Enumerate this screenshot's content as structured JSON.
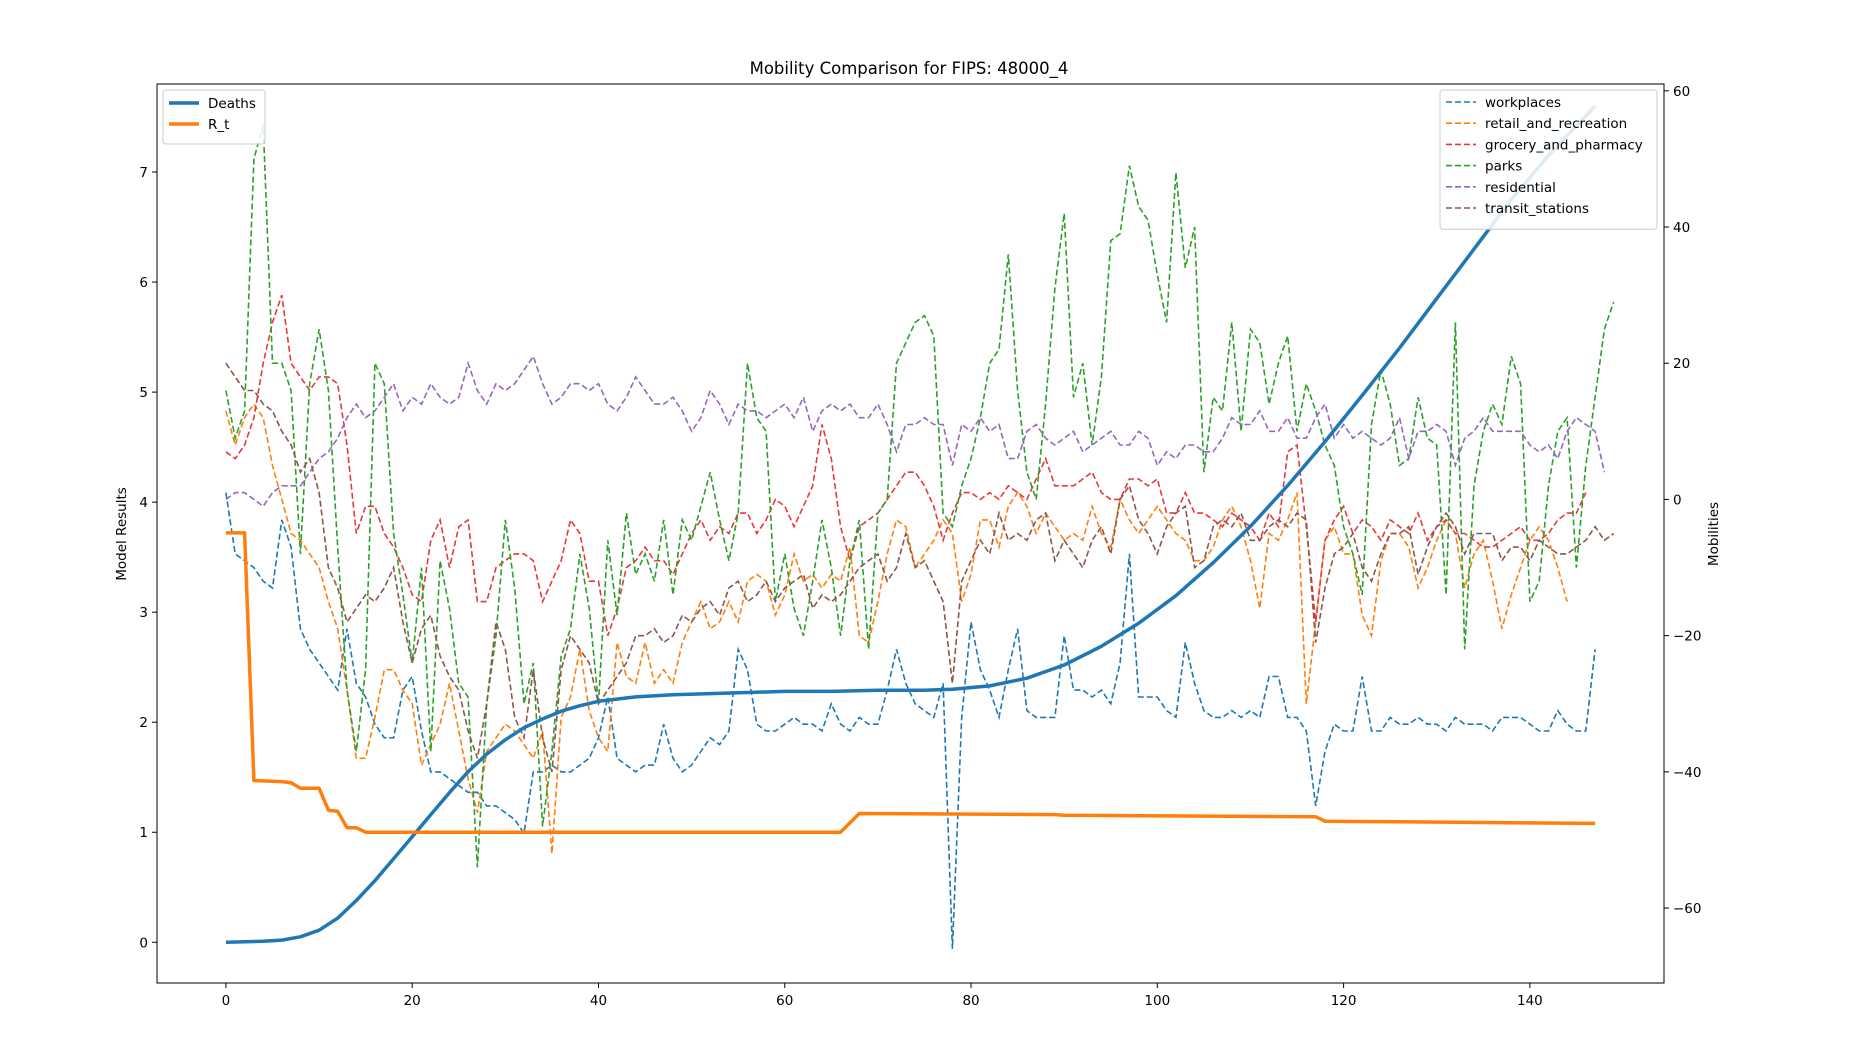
{
  "chart_data": {
    "type": "line",
    "title": "Mobility Comparison for FIPS: 48000_4",
    "xlabel": "",
    "ylabel": "Model Results",
    "y2label": "Mobilities",
    "xlim": [
      -7.4,
      154.4
    ],
    "ylim": [
      -0.37,
      7.8
    ],
    "y2lim": [
      -71,
      61
    ],
    "xticks": [
      0,
      20,
      40,
      60,
      80,
      100,
      120,
      140
    ],
    "yticks": [
      0,
      1,
      2,
      3,
      4,
      5,
      6,
      7
    ],
    "y2ticks": [
      -60,
      -40,
      -20,
      0,
      20,
      40,
      60
    ],
    "legend_left_position": "upper left",
    "legend_right_position": "upper right",
    "model_series": [
      {
        "name": "Deaths",
        "color": "#1f77b4",
        "style": "solid",
        "points": [
          [
            0,
            0
          ],
          [
            4,
            0.01
          ],
          [
            6,
            0.02
          ],
          [
            8,
            0.05
          ],
          [
            10,
            0.11
          ],
          [
            12,
            0.22
          ],
          [
            14,
            0.38
          ],
          [
            16,
            0.56
          ],
          [
            18,
            0.76
          ],
          [
            20,
            0.96
          ],
          [
            22,
            1.16
          ],
          [
            24,
            1.36
          ],
          [
            26,
            1.55
          ],
          [
            28,
            1.71
          ],
          [
            30,
            1.84
          ],
          [
            32,
            1.95
          ],
          [
            34,
            2.03
          ],
          [
            36,
            2.1
          ],
          [
            38,
            2.15
          ],
          [
            40,
            2.19
          ],
          [
            44,
            2.23
          ],
          [
            48,
            2.25
          ],
          [
            52,
            2.26
          ],
          [
            56,
            2.27
          ],
          [
            60,
            2.28
          ],
          [
            65,
            2.28
          ],
          [
            70,
            2.29
          ],
          [
            75,
            2.29
          ],
          [
            78,
            2.3
          ],
          [
            82,
            2.33
          ],
          [
            86,
            2.4
          ],
          [
            90,
            2.52
          ],
          [
            94,
            2.69
          ],
          [
            98,
            2.9
          ],
          [
            102,
            3.15
          ],
          [
            106,
            3.45
          ],
          [
            110,
            3.78
          ],
          [
            114,
            4.15
          ],
          [
            118,
            4.55
          ],
          [
            122,
            4.97
          ],
          [
            126,
            5.4
          ],
          [
            130,
            5.85
          ],
          [
            134,
            6.3
          ],
          [
            138,
            6.75
          ],
          [
            142,
            7.15
          ],
          [
            147,
            7.6
          ]
        ]
      },
      {
        "name": "R_t",
        "color": "#ff7f0e",
        "style": "solid",
        "points": [
          [
            0,
            3.72
          ],
          [
            2,
            3.72
          ],
          [
            3,
            1.47
          ],
          [
            6,
            1.46
          ],
          [
            7,
            1.45
          ],
          [
            8,
            1.4
          ],
          [
            10,
            1.4
          ],
          [
            11,
            1.2
          ],
          [
            12,
            1.19
          ],
          [
            13,
            1.04
          ],
          [
            14,
            1.04
          ],
          [
            15,
            1.0
          ],
          [
            66,
            1.0
          ],
          [
            68,
            1.17
          ],
          [
            89,
            1.16
          ],
          [
            90,
            1.155
          ],
          [
            117,
            1.14
          ],
          [
            118,
            1.1
          ],
          [
            147,
            1.08
          ]
        ]
      }
    ],
    "mobility_series": [
      {
        "name": "workplaces",
        "color": "#1f77b4",
        "values": [
          1,
          -8,
          -9,
          -10,
          -12,
          -13,
          -3,
          -7,
          -19,
          -22,
          -24,
          -26,
          -28,
          -19,
          -27,
          -29,
          -33,
          -35,
          -35,
          -28,
          -26,
          -34,
          -40,
          -40,
          -41,
          -42,
          -43,
          -43,
          -45,
          -45,
          -46,
          -47,
          -49,
          -40,
          -40,
          -39,
          -40,
          -40,
          -39,
          -38,
          -35,
          -29,
          -38,
          -39,
          -40,
          -39,
          -39,
          -33,
          -38,
          -40,
          -39,
          -37,
          -35,
          -36,
          -34,
          -22,
          -25,
          -33,
          -34,
          -34,
          -33,
          -32,
          -33,
          -33,
          -34,
          -30,
          -33,
          -34,
          -32,
          -33,
          -33,
          -28,
          -22,
          -27,
          -30,
          -31,
          -32,
          -27,
          -66,
          -32,
          -18,
          -25,
          -28,
          -32,
          -25,
          -19,
          -31,
          -32,
          -32,
          -32,
          -20,
          -28,
          -28,
          -29,
          -28,
          -30,
          -24,
          -8,
          -29,
          -29,
          -29,
          -31,
          -32,
          -21,
          -27,
          -31,
          -32,
          -32,
          -31,
          -32,
          -31,
          -32,
          -26,
          -26,
          -32,
          -32,
          -34,
          -45,
          -37,
          -33,
          -34,
          -34,
          -26,
          -34,
          -34,
          -32,
          -33,
          -33,
          -32,
          -33,
          -33,
          -34,
          -32,
          -33,
          -33,
          -33,
          -34,
          -32,
          -32,
          -32,
          -33,
          -34,
          -34,
          -31,
          -33,
          -34,
          -34,
          -22
        ]
      },
      {
        "name": "retail_and_recreation",
        "color": "#ff7f0e",
        "values": [
          13,
          8,
          12,
          14,
          12,
          5,
          0,
          -5,
          -6,
          -8,
          -10,
          -15,
          -19,
          -28,
          -38,
          -38,
          -32,
          -25,
          -25,
          -28,
          -30,
          -39,
          -36,
          -33,
          -27,
          -34,
          -41,
          -46,
          -37,
          -35,
          -33,
          -34,
          -36,
          -38,
          -34,
          -52,
          -32,
          -29,
          -22,
          -31,
          -35,
          -37,
          -21,
          -26,
          -27,
          -21,
          -27,
          -25,
          -27,
          -21,
          -18,
          -15,
          -19,
          -18,
          -15,
          -18,
          -12,
          -11,
          -12,
          -17,
          -14,
          -8,
          -12,
          -11,
          -13,
          -11,
          -12,
          -7,
          -20,
          -21,
          -15,
          -8,
          -3,
          -4,
          -10,
          -8,
          -6,
          -3,
          -5,
          -15,
          -11,
          -3,
          -3,
          -7,
          -1,
          1,
          -1,
          -5,
          -2,
          -4,
          -6,
          -5,
          -6,
          -1,
          -5,
          -7,
          0,
          -3,
          -5,
          -3,
          -1,
          -3,
          -5,
          -6,
          -9,
          -9,
          -7,
          -3,
          -1,
          -4,
          -9,
          -16,
          -5,
          -6,
          -3,
          1,
          -30,
          -18,
          -6,
          -4,
          -8,
          -8,
          -17,
          -20,
          -9,
          -5,
          -5,
          -7,
          -13,
          -10,
          -6,
          -3,
          -5,
          -13,
          -8,
          -6,
          -12,
          -19,
          -14,
          -10,
          -6,
          -4,
          -6,
          -10,
          -15
        ]
      },
      {
        "name": "grocery_and_pharmacy",
        "color": "#e5393b",
        "values": [
          7,
          6,
          8,
          12,
          20,
          26,
          30,
          20,
          18,
          16,
          18,
          18,
          17,
          8,
          -5,
          -1,
          -1,
          -5,
          -7,
          -10,
          -14,
          -15,
          -6,
          -3,
          -10,
          -4,
          -3,
          -15,
          -15,
          -10,
          -9,
          -8,
          -8,
          -9,
          -15,
          -12,
          -9,
          -3,
          -5,
          -12,
          -12,
          -20,
          -16,
          -10,
          -9,
          -7,
          -9,
          -9,
          -11,
          -8,
          -5,
          -3,
          -6,
          -4,
          -5,
          -2,
          -2,
          -5,
          -3,
          0,
          -1,
          -4,
          -1,
          2,
          11,
          6,
          -4,
          -9,
          -4,
          -3,
          -2,
          0,
          2,
          4,
          4,
          2,
          -1,
          -6,
          -2,
          1,
          1,
          0,
          1,
          0,
          2,
          1,
          0,
          3,
          6,
          2,
          2,
          2,
          3,
          4,
          1,
          0,
          0,
          3,
          3,
          2,
          3,
          -2,
          -2,
          1,
          -2,
          -2,
          -3,
          -4,
          -2,
          -3,
          -4,
          -6,
          -2,
          -4,
          7,
          8,
          -4,
          -18,
          -6,
          -3,
          -1,
          -5,
          -3,
          -4,
          -6,
          -3,
          -4,
          -5,
          -2,
          -6,
          -4,
          -3,
          -5,
          -5,
          -6,
          -7,
          -7,
          -6,
          -5,
          -4,
          -6,
          -6,
          -5,
          -3,
          -2,
          -2,
          1
        ]
      },
      {
        "name": "parks",
        "color": "#2ca02c",
        "values": [
          16,
          9,
          13,
          50,
          55,
          20,
          20,
          16,
          -8,
          17,
          25,
          16,
          -7,
          -28,
          -37,
          -25,
          20,
          17,
          -5,
          -14,
          -24,
          -10,
          -37,
          -9,
          -16,
          -27,
          -29,
          -54,
          -30,
          -20,
          -3,
          -13,
          -30,
          -24,
          -48,
          -37,
          -23,
          -19,
          -8,
          -16,
          -30,
          -6,
          -17,
          -2,
          -11,
          -8,
          -12,
          -3,
          -14,
          -3,
          -6,
          -1,
          4,
          -3,
          -9,
          -2,
          20,
          12,
          10,
          -15,
          -8,
          -16,
          -20,
          -12,
          -3,
          -10,
          -20,
          -9,
          -3,
          -22,
          -2,
          0,
          20,
          23,
          26,
          27,
          24,
          -2,
          -4,
          2,
          6,
          12,
          20,
          22,
          36,
          16,
          4,
          0,
          14,
          31,
          42,
          15,
          20,
          8,
          18,
          38,
          39,
          49,
          43,
          41,
          33,
          26,
          48,
          34,
          40,
          4,
          15,
          13,
          26,
          10,
          25,
          23,
          14,
          20,
          24,
          10,
          17,
          13,
          8,
          5,
          -4,
          -8,
          -14,
          11,
          19,
          14,
          5,
          6,
          15,
          9,
          8,
          -14,
          26,
          -22,
          2,
          10,
          14,
          11,
          21,
          17,
          -15,
          -12,
          2,
          10,
          12,
          -10,
          5,
          15,
          25,
          29
        ]
      },
      {
        "name": "residential",
        "color": "#9467bd",
        "values": [
          0,
          1,
          1,
          0,
          -1,
          1,
          2,
          2,
          2,
          4,
          6,
          7,
          9,
          12,
          14,
          12,
          13,
          15,
          17,
          13,
          15,
          14,
          17,
          15,
          14,
          15,
          20,
          16,
          14,
          17,
          16,
          17,
          19,
          21,
          17,
          14,
          15,
          17,
          17,
          16,
          17,
          14,
          13,
          15,
          18,
          16,
          14,
          14,
          15,
          13,
          10,
          12,
          16,
          14,
          11,
          14,
          13,
          13,
          12,
          13,
          14,
          12,
          15,
          10,
          13,
          14,
          13,
          14,
          12,
          12,
          14,
          11,
          7,
          11,
          11,
          12,
          11,
          11,
          5,
          11,
          10,
          12,
          10,
          11,
          6,
          6,
          10,
          11,
          9,
          8,
          9,
          10,
          7,
          8,
          9,
          10,
          8,
          8,
          10,
          9,
          5,
          7,
          6,
          8,
          8,
          7,
          7,
          9,
          12,
          11,
          11,
          13,
          10,
          10,
          12,
          9,
          9,
          12,
          14,
          9,
          11,
          9,
          10,
          9,
          8,
          9,
          12,
          6,
          10,
          10,
          11,
          10,
          5,
          9,
          10,
          12,
          10,
          10,
          10,
          10,
          8,
          7,
          8,
          6,
          10,
          12,
          11,
          10,
          4
        ]
      },
      {
        "name": "transit_stations",
        "color": "#8c564b",
        "values": [
          20,
          18,
          16,
          16,
          14,
          13,
          10,
          8,
          4,
          6,
          1,
          -10,
          -13,
          -18,
          -16,
          -14,
          -15,
          -13,
          -10,
          -18,
          -24,
          -19,
          -17,
          -23,
          -26,
          -28,
          -34,
          -38,
          -30,
          -18,
          -22,
          -32,
          -35,
          -25,
          -35,
          -40,
          -25,
          -20,
          -22,
          -24,
          -30,
          -28,
          -26,
          -24,
          -20,
          -20,
          -19,
          -21,
          -20,
          -17,
          -18,
          -16,
          -15,
          -17,
          -13,
          -12,
          -15,
          -14,
          -12,
          -15,
          -13,
          -12,
          -11,
          -16,
          -14,
          -15,
          -14,
          -12,
          -10,
          -9,
          -8,
          -12,
          -10,
          -5,
          -10,
          -9,
          -12,
          -15,
          -27,
          -12,
          -9,
          -6,
          -8,
          -2,
          -6,
          -5,
          -6,
          -3,
          -2,
          -9,
          -6,
          -8,
          -10,
          -6,
          -4,
          -8,
          0,
          2,
          -3,
          -5,
          -8,
          -4,
          -2,
          -1,
          -10,
          -9,
          -4,
          -3,
          -4,
          -2,
          -6,
          -6,
          -4,
          -3,
          -4,
          -2,
          -3,
          -21,
          -13,
          -8,
          -7,
          -5,
          -10,
          -12,
          -8,
          -5,
          -5,
          -4,
          -11,
          -7,
          -4,
          -2,
          -4,
          -8,
          -5,
          -5,
          -5,
          -9,
          -7,
          -7,
          -9,
          -6,
          -7,
          -8,
          -8,
          -7,
          -6,
          -4,
          -6,
          -5
        ]
      }
    ]
  }
}
